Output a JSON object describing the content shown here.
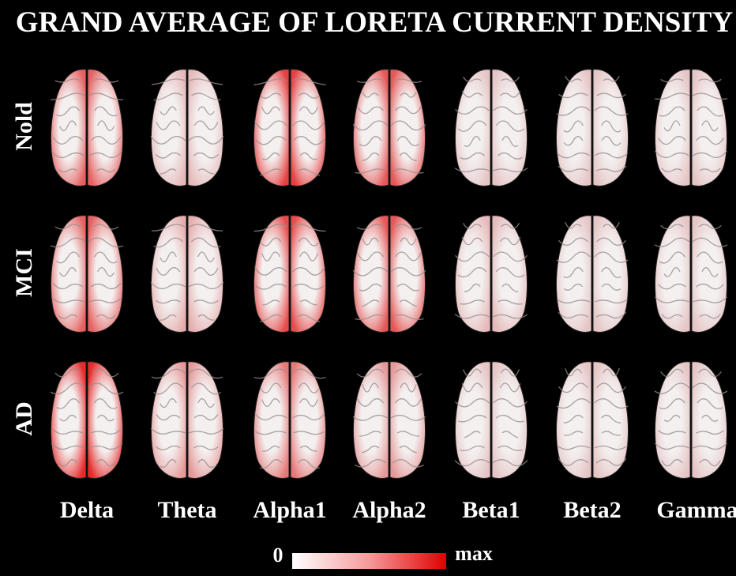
{
  "title": "GRAND AVERAGE OF LORETA CURRENT DENSITY",
  "rows": [
    "Nold",
    "MCI",
    "AD"
  ],
  "columns": [
    "Delta",
    "Theta",
    "Alpha1",
    "Alpha2",
    "Beta1",
    "Beta2",
    "Gamma"
  ],
  "colorbar": {
    "min_label": "0",
    "max_label": "max"
  }
}
